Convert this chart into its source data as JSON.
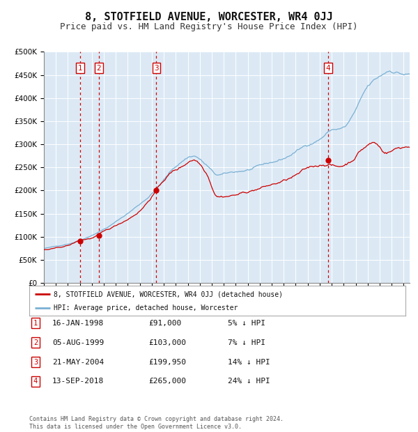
{
  "title": "8, STOTFIELD AVENUE, WORCESTER, WR4 0JJ",
  "subtitle": "Price paid vs. HM Land Registry's House Price Index (HPI)",
  "title_fontsize": 11,
  "subtitle_fontsize": 9,
  "background_color": "#ffffff",
  "plot_bg_color": "#dce9f5",
  "grid_color": "#ffffff",
  "ylim": [
    0,
    500000
  ],
  "yticks": [
    0,
    50000,
    100000,
    150000,
    200000,
    250000,
    300000,
    350000,
    400000,
    450000,
    500000
  ],
  "sales": [
    {
      "label": "1",
      "date": 1998.04,
      "price": 91000
    },
    {
      "label": "2",
      "date": 1999.59,
      "price": 103000
    },
    {
      "label": "3",
      "date": 2004.38,
      "price": 199950
    },
    {
      "label": "4",
      "date": 2018.71,
      "price": 265000
    }
  ],
  "sale_info": [
    {
      "num": "1",
      "date": "16-JAN-1998",
      "price": "£91,000",
      "hpi": "5% ↓ HPI"
    },
    {
      "num": "2",
      "date": "05-AUG-1999",
      "price": "£103,000",
      "hpi": "7% ↓ HPI"
    },
    {
      "num": "3",
      "date": "21-MAY-2004",
      "price": "£199,950",
      "hpi": "14% ↓ HPI"
    },
    {
      "num": "4",
      "date": "13-SEP-2018",
      "price": "£265,000",
      "hpi": "24% ↓ HPI"
    }
  ],
  "hpi_line_color": "#7ab0d4",
  "property_line_color": "#cc0000",
  "legend_label_property": "8, STOTFIELD AVENUE, WORCESTER, WR4 0JJ (detached house)",
  "legend_label_hpi": "HPI: Average price, detached house, Worcester",
  "footer": "Contains HM Land Registry data © Crown copyright and database right 2024.\nThis data is licensed under the Open Government Licence v3.0.",
  "xmin": 1995.0,
  "xmax": 2025.5
}
